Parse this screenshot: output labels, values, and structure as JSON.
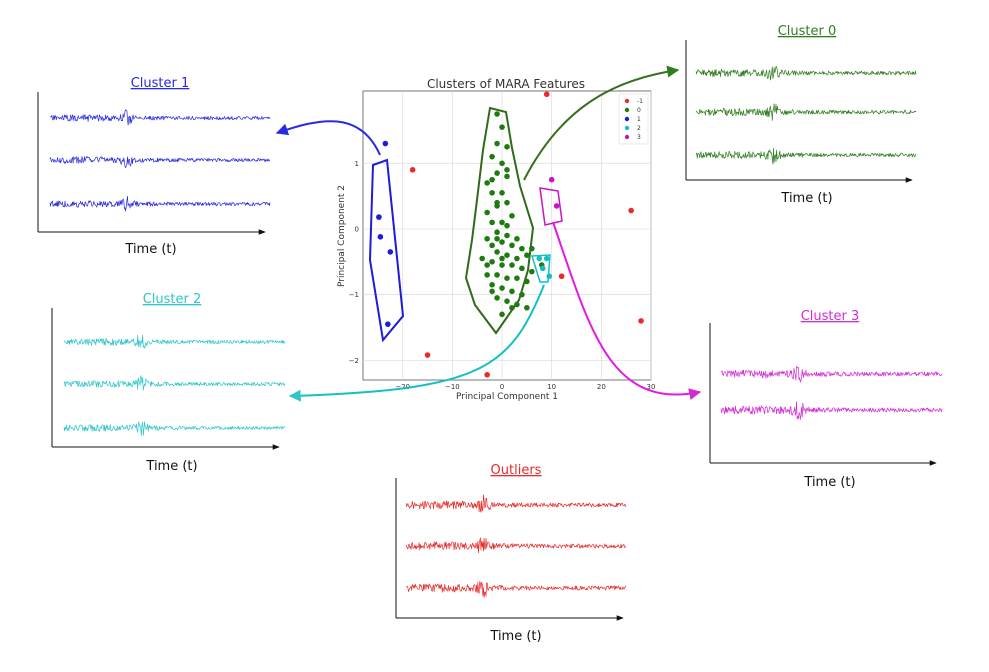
{
  "colors": {
    "cluster_0": "#2f7d1f",
    "cluster_1": "#2a2ae0",
    "cluster_2": "#2ec6c9",
    "cluster_3": "#d42ad6",
    "outliers": "#e82a2a"
  },
  "panels": [
    {
      "id": "cluster_1",
      "title": "Cluster 1",
      "xlabel": "Time (t)",
      "color_key": "cluster_1",
      "n_traces": 3
    },
    {
      "id": "cluster_2",
      "title": "Cluster 2",
      "xlabel": "Time (t)",
      "color_key": "cluster_2",
      "n_traces": 3
    },
    {
      "id": "cluster_0",
      "title": "Cluster 0",
      "xlabel": "Time (t)",
      "color_key": "cluster_0",
      "n_traces": 3
    },
    {
      "id": "cluster_3",
      "title": "Cluster 3",
      "xlabel": "Time (t)",
      "color_key": "cluster_3",
      "n_traces": 2
    },
    {
      "id": "outliers",
      "title": "Outliers",
      "xlabel": "Time (t)",
      "color_key": "outliers",
      "n_traces": 3
    }
  ],
  "chart_data": {
    "type": "scatter",
    "title": "Clusters of MARA Features",
    "xlabel": "Principal Component 1",
    "ylabel": "Principal Component 2",
    "xlim": [
      -28,
      30
    ],
    "ylim": [
      -2.3,
      2.1
    ],
    "xticks": [
      -20,
      -10,
      0,
      10,
      20,
      30
    ],
    "yticks": [
      -2,
      -1,
      0,
      1
    ],
    "xtick_labels": [
      "−20",
      "−10",
      "0",
      "10",
      "20",
      "30"
    ],
    "ytick_labels": [
      "−2",
      "−1",
      "0",
      "1"
    ],
    "grid": true,
    "legend": {
      "position": "top-right",
      "entries": [
        "-1",
        "0",
        "1",
        "2",
        "3"
      ]
    },
    "series": [
      {
        "name": "-1",
        "color": "#e82a2a",
        "points": [
          [
            9,
            2.05
          ],
          [
            -18,
            0.9
          ],
          [
            26,
            0.28
          ],
          [
            12,
            -0.72
          ],
          [
            28,
            -1.4
          ],
          [
            -15,
            -1.92
          ],
          [
            -3,
            -2.22
          ]
        ]
      },
      {
        "name": "0",
        "color": "#1f7a12",
        "points": [
          [
            -1,
            1.75
          ],
          [
            0,
            1.55
          ],
          [
            -1,
            1.3
          ],
          [
            1,
            1.25
          ],
          [
            -2,
            1.1
          ],
          [
            0,
            1.0
          ],
          [
            -1,
            0.85
          ],
          [
            1,
            0.8
          ],
          [
            -3,
            0.7
          ],
          [
            -2,
            0.55
          ],
          [
            0,
            0.55
          ],
          [
            1,
            0.4
          ],
          [
            -1,
            0.35
          ],
          [
            -3,
            0.25
          ],
          [
            -2,
            0.1
          ],
          [
            0,
            0.1
          ],
          [
            1,
            0.05
          ],
          [
            -1,
            -0.05
          ],
          [
            -3,
            -0.15
          ],
          [
            -2,
            -0.25
          ],
          [
            0,
            -0.2
          ],
          [
            2,
            -0.25
          ],
          [
            4,
            -0.3
          ],
          [
            -1,
            -0.35
          ],
          [
            1,
            -0.4
          ],
          [
            3,
            -0.45
          ],
          [
            5,
            -0.4
          ],
          [
            -4,
            -0.45
          ],
          [
            -2,
            -0.5
          ],
          [
            0,
            -0.55
          ],
          [
            2,
            -0.55
          ],
          [
            4,
            -0.6
          ],
          [
            6,
            -0.65
          ],
          [
            -3,
            -0.7
          ],
          [
            -1,
            -0.7
          ],
          [
            1,
            -0.75
          ],
          [
            3,
            -0.75
          ],
          [
            5,
            -0.8
          ],
          [
            -2,
            -0.85
          ],
          [
            0,
            -0.9
          ],
          [
            2,
            -0.95
          ],
          [
            4,
            -1.0
          ],
          [
            -1,
            -1.05
          ],
          [
            1,
            -1.1
          ],
          [
            3,
            -1.15
          ],
          [
            0,
            -1.3
          ],
          [
            -1,
            -0.15
          ],
          [
            1,
            -0.1
          ],
          [
            3,
            -0.15
          ],
          [
            2,
            0.2
          ],
          [
            -2,
            0.75
          ],
          [
            0,
            -0.45
          ],
          [
            -1,
            0.4
          ],
          [
            1,
            0.9
          ],
          [
            -2,
            -0.95
          ],
          [
            6,
            -0.3
          ],
          [
            8,
            -0.55
          ],
          [
            -3,
            -0.55
          ],
          [
            2,
            -1.2
          ],
          [
            5,
            -1.2
          ]
        ]
      },
      {
        "name": "1",
        "color": "#1c1cd9",
        "points": [
          [
            -23.5,
            1.3
          ],
          [
            -24.8,
            0.18
          ],
          [
            -24.5,
            -0.12
          ],
          [
            -22.5,
            -0.35
          ],
          [
            -23,
            -1.45
          ]
        ]
      },
      {
        "name": "2",
        "color": "#14bfc4",
        "points": [
          [
            7.5,
            -0.45
          ],
          [
            9,
            -0.45
          ],
          [
            8.2,
            -0.6
          ],
          [
            9.5,
            -0.72
          ]
        ]
      },
      {
        "name": "3",
        "color": "#c614c6",
        "points": [
          [
            10,
            0.75
          ],
          [
            11,
            0.35
          ]
        ]
      }
    ]
  }
}
